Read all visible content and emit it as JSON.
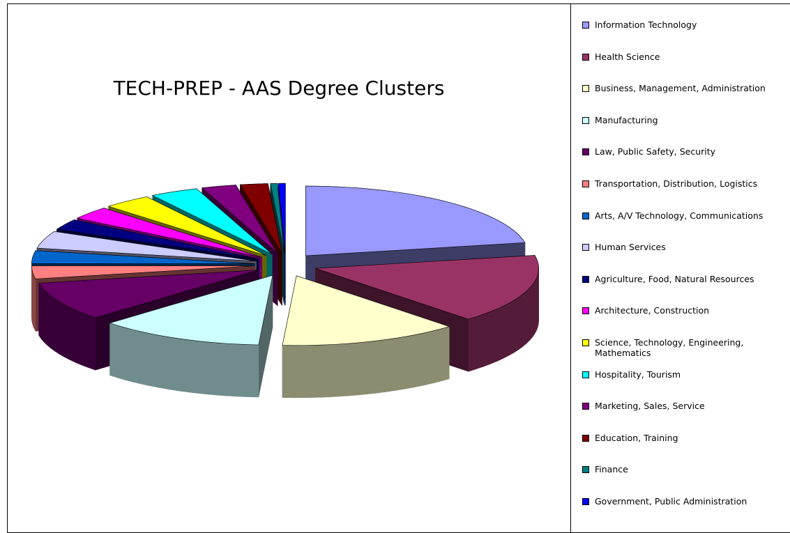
{
  "chart_data": {
    "type": "pie3d",
    "title": "TECH-PREP - AAS Degree Clusters",
    "legend": "right",
    "categories": [
      "Information Technology",
      "Health Science",
      "Business, Management, Administration",
      "Manufacturing",
      "Law, Public Safety, Security",
      "Transportation, Distribution, Logistics",
      "Arts, A/V Technology, Communications",
      "Human Services",
      "Agriculture, Food, Natural Resources",
      "Architecture, Construction",
      "Science, Technology, Engineering, Mathematics",
      "Hospitality, Tourism",
      "Marketing, Sales, Service",
      "Education, Training",
      "Finance",
      "Government, Public Administration"
    ],
    "values": [
      22,
      16,
      13,
      12,
      9,
      3,
      3,
      4,
      2.5,
      3,
      3.5,
      3.5,
      2.5,
      2,
      0.5,
      0.5
    ],
    "colors": [
      "#9999ff",
      "#993366",
      "#ffffcc",
      "#ccffff",
      "#660066",
      "#ff8080",
      "#0066cc",
      "#ccccff",
      "#000080",
      "#ff00ff",
      "#ffff00",
      "#00ffff",
      "#800080",
      "#800000",
      "#008080",
      "#0000ff"
    ]
  }
}
